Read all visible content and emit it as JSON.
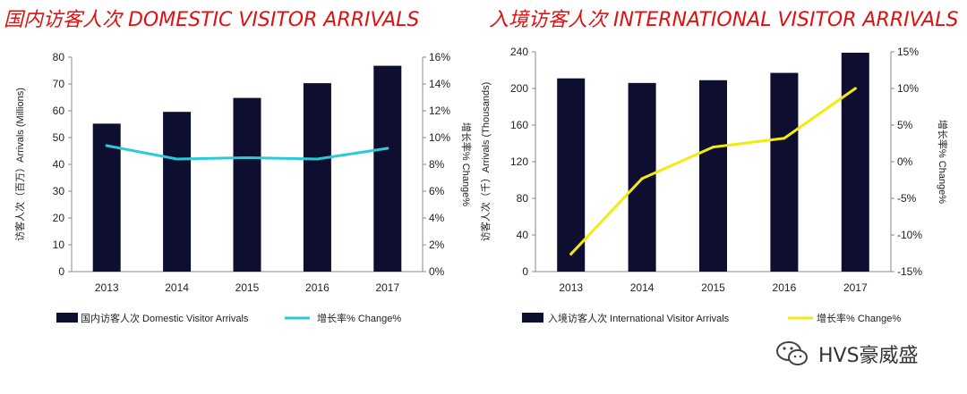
{
  "chart_data": [
    {
      "type": "bar",
      "title": "国内访客人次 DOMESTIC VISITOR ARRIVALS",
      "ylabel": "访客人次（百万）Arrivals (Millions)",
      "y2label": "增长率% Change%",
      "categories": [
        "2013",
        "2014",
        "2015",
        "2016",
        "2017"
      ],
      "ylim": [
        0,
        80
      ],
      "y_ticks": [
        "0",
        "10",
        "20",
        "30",
        "40",
        "50",
        "60",
        "70",
        "80"
      ],
      "y2lim": [
        0,
        16
      ],
      "y2_ticks": [
        "0%",
        "2%",
        "4%",
        "6%",
        "8%",
        "10%",
        "12%",
        "14%",
        "16%"
      ],
      "series": [
        {
          "name": "国内访客人次 Domestic Visitor Arrivals",
          "kind": "bar",
          "axis": "left",
          "color": "#0e0e30",
          "values": [
            55.2,
            59.6,
            64.8,
            70.3,
            76.8
          ]
        },
        {
          "name": "增长率% Change%",
          "kind": "line",
          "axis": "right",
          "color": "#2ec9d6",
          "values": [
            9.4,
            8.4,
            8.5,
            8.4,
            9.2
          ]
        }
      ],
      "legend_position": "bottom"
    },
    {
      "type": "bar",
      "title": "入境访客人次 INTERNATIONAL VISITOR ARRIVALS",
      "ylabel": "访客人次（千）Arrivals (Thousands)",
      "y2label": "增长率% Change%",
      "categories": [
        "2013",
        "2014",
        "2015",
        "2016",
        "2017"
      ],
      "ylim": [
        0,
        240
      ],
      "y_ticks": [
        "0",
        "40",
        "80",
        "120",
        "160",
        "200",
        "240"
      ],
      "y2lim": [
        -15,
        15
      ],
      "y2_ticks": [
        "-15%",
        "-10%",
        "-5%",
        "0%",
        "5%",
        "10%",
        "15%"
      ],
      "series": [
        {
          "name": "入境访客人次 International Visitor Arrivals",
          "kind": "bar",
          "axis": "left",
          "color": "#0e0e30",
          "values": [
            211,
            206,
            209,
            217,
            239
          ]
        },
        {
          "name": "增长率% Change%",
          "kind": "line",
          "axis": "right",
          "color": "#f2ea10",
          "values": [
            -12.6,
            -2.3,
            2.0,
            3.2,
            10.0
          ]
        }
      ],
      "legend_position": "bottom"
    }
  ],
  "watermark": {
    "text": "HVS豪威盛",
    "icon": "wechat-icon"
  }
}
